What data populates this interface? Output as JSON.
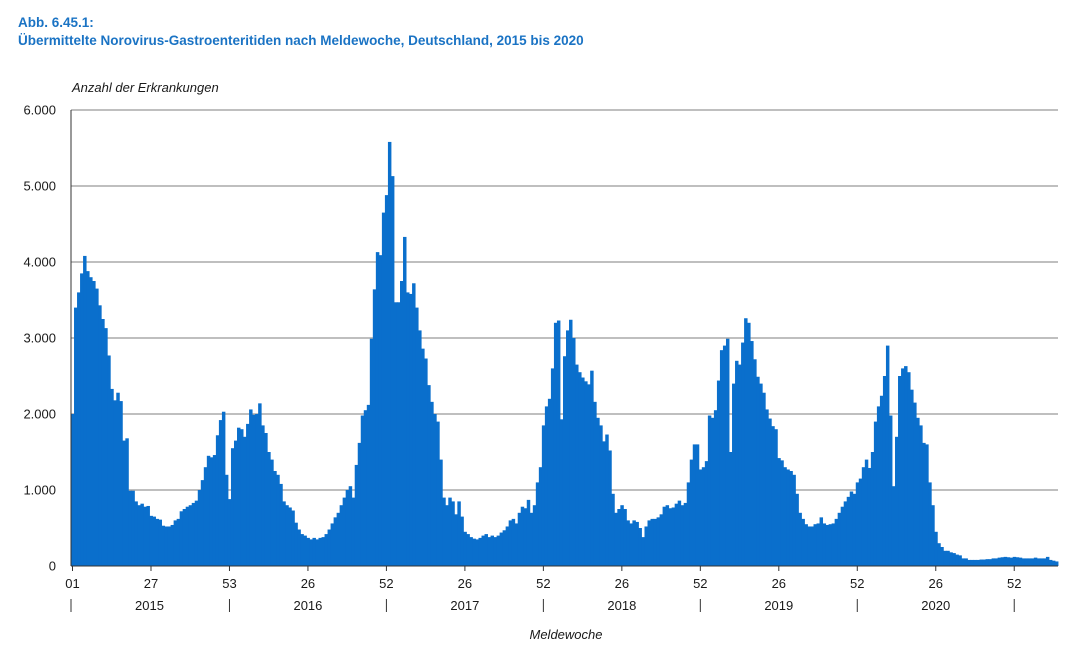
{
  "header": {
    "fig_label": "Abb. 6.45.1:",
    "fig_title": "Übermittelte Norovirus-Gastroenteritiden nach Meldewoche, Deutschland, 2015 bis 2020"
  },
  "colors": {
    "bar": "#0a6fcc",
    "grid": "#555555",
    "header": "#1a73c4"
  },
  "chart_data": {
    "type": "bar",
    "title": "Übermittelte Norovirus-Gastroenteritiden nach Meldewoche, Deutschland, 2015 bis 2020",
    "ylabel": "Anzahl der Erkrankungen",
    "xlabel": "Meldewoche",
    "ylim": [
      0,
      6000
    ],
    "yticks": [
      0,
      1000,
      2000,
      3000,
      4000,
      5000,
      6000
    ],
    "ytick_labels": [
      "0",
      "1.000",
      "2.000",
      "3.000",
      "4.000",
      "5.000",
      "6.000"
    ],
    "xticks": [
      {
        "label": "01",
        "index": 0
      },
      {
        "label": "27",
        "index": 26
      },
      {
        "label": "53",
        "index": 52
      },
      {
        "label": "26",
        "index": 78
      },
      {
        "label": "52",
        "index": 104
      },
      {
        "label": "26",
        "index": 130
      },
      {
        "label": "52",
        "index": 156
      },
      {
        "label": "26",
        "index": 182
      },
      {
        "label": "52",
        "index": 208
      },
      {
        "label": "26",
        "index": 234
      },
      {
        "label": "52",
        "index": 260
      },
      {
        "label": "26",
        "index": 286
      },
      {
        "label": "52",
        "index": 312
      }
    ],
    "year_separators": [
      0,
      52.5,
      104.5,
      156.5,
      208.5,
      260.5,
      312.5
    ],
    "years": [
      {
        "label": "2015",
        "center": 26
      },
      {
        "label": "2016",
        "center": 78.5
      },
      {
        "label": "2017",
        "center": 130.5
      },
      {
        "label": "2018",
        "center": 182.5
      },
      {
        "label": "2019",
        "center": 234.5
      },
      {
        "label": "2020",
        "center": 286.5
      }
    ],
    "values": [
      2000,
      3400,
      3600,
      3850,
      4080,
      3880,
      3800,
      3750,
      3650,
      3430,
      3250,
      3130,
      2770,
      2330,
      2180,
      2280,
      2170,
      1650,
      1680,
      990,
      990,
      850,
      800,
      820,
      780,
      790,
      660,
      650,
      620,
      610,
      530,
      520,
      520,
      540,
      600,
      620,
      720,
      750,
      780,
      800,
      830,
      860,
      1000,
      1130,
      1300,
      1450,
      1430,
      1460,
      1720,
      1920,
      2030,
      1200,
      880,
      1550,
      1650,
      1820,
      1800,
      1700,
      1870,
      2060,
      1990,
      2000,
      2140,
      1850,
      1750,
      1500,
      1400,
      1250,
      1200,
      1080,
      850,
      800,
      770,
      730,
      570,
      480,
      420,
      400,
      370,
      350,
      370,
      350,
      370,
      380,
      420,
      480,
      560,
      640,
      700,
      800,
      900,
      1000,
      1050,
      900,
      1330,
      1620,
      1980,
      2050,
      2120,
      2990,
      3640,
      4130,
      4090,
      4650,
      4880,
      5580,
      5130,
      3470,
      3470,
      3750,
      4330,
      3600,
      3580,
      3720,
      3400,
      3100,
      2860,
      2730,
      2380,
      2160,
      2000,
      1900,
      1400,
      900,
      800,
      900,
      850,
      680,
      850,
      650,
      450,
      420,
      380,
      360,
      350,
      370,
      400,
      420,
      380,
      400,
      380,
      400,
      440,
      470,
      520,
      600,
      620,
      560,
      700,
      780,
      760,
      870,
      700,
      800,
      1100,
      1300,
      1850,
      2100,
      2200,
      2600,
      3200,
      3230,
      1930,
      2760,
      3100,
      3240,
      3000,
      2650,
      2550,
      2480,
      2430,
      2390,
      2570,
      2160,
      1950,
      1850,
      1640,
      1730,
      1520,
      950,
      700,
      750,
      800,
      750,
      600,
      560,
      600,
      580,
      500,
      380,
      520,
      600,
      620,
      620,
      640,
      680,
      780,
      800,
      760,
      770,
      820,
      860,
      800,
      830,
      1100,
      1400,
      1600,
      1600,
      1270,
      1300,
      1380,
      1980,
      1950,
      2050,
      2440,
      2840,
      2900,
      2990,
      1500,
      2400,
      2700,
      2650,
      2940,
      3260,
      3200,
      2960,
      2720,
      2490,
      2400,
      2280,
      2060,
      1940,
      1840,
      1800,
      1420,
      1390,
      1300,
      1270,
      1250,
      1200,
      950,
      700,
      620,
      550,
      520,
      520,
      550,
      560,
      640,
      560,
      540,
      550,
      560,
      620,
      700,
      780,
      850,
      910,
      980,
      950,
      1100,
      1150,
      1300,
      1400,
      1290,
      1500,
      1900,
      2100,
      2240,
      2500,
      2900,
      1980,
      1050,
      1700,
      2500,
      2600,
      2630,
      2550,
      2320,
      2150,
      1950,
      1850,
      1620,
      1600,
      1100,
      800,
      450,
      300,
      250,
      200,
      200,
      180,
      170,
      150,
      140,
      100,
      100,
      80,
      80,
      80,
      80,
      85,
      85,
      90,
      90,
      100,
      100,
      110,
      115,
      120,
      115,
      110,
      120,
      115,
      110,
      100,
      100,
      100,
      100,
      110,
      100,
      100,
      100,
      120,
      80,
      70,
      60
    ]
  }
}
